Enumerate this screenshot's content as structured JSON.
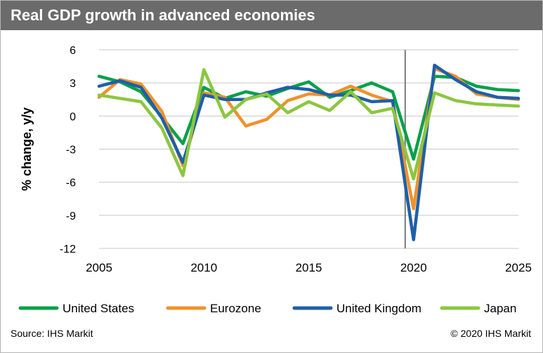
{
  "title": "Real GDP growth in advanced economies",
  "source": "Source: IHS Markit",
  "copyright": "© 2020 IHS Markit",
  "chart_data": {
    "type": "line",
    "title": "Real GDP growth in advanced economies",
    "xlabel": "",
    "ylabel": "% change, y/y",
    "xlim": [
      2005,
      2025
    ],
    "ylim": [
      -12,
      6
    ],
    "yticks": [
      -12,
      -9,
      -6,
      -3,
      0,
      3,
      6
    ],
    "xticks": [
      2005,
      2010,
      2015,
      2020,
      2025
    ],
    "grid": "horizontal",
    "legend_position": "bottom",
    "vline_x": 2019.6,
    "x": [
      2005,
      2006,
      2007,
      2008,
      2009,
      2010,
      2011,
      2012,
      2013,
      2014,
      2015,
      2016,
      2017,
      2018,
      2019,
      2020,
      2021,
      2022,
      2023,
      2024,
      2025
    ],
    "series": [
      {
        "name": "United States",
        "color": "#0aa04a",
        "values": [
          3.6,
          3.1,
          2.2,
          -0.1,
          -2.5,
          2.6,
          1.6,
          2.2,
          1.8,
          2.5,
          3.1,
          1.7,
          2.3,
          3.0,
          2.2,
          -3.9,
          3.6,
          3.5,
          2.7,
          2.4,
          2.3
        ]
      },
      {
        "name": "Eurozone",
        "color": "#f0922b",
        "values": [
          1.7,
          3.3,
          2.9,
          0.4,
          -4.5,
          2.1,
          1.7,
          -0.9,
          -0.3,
          1.4,
          2.0,
          1.9,
          2.7,
          1.9,
          1.3,
          -8.4,
          4.3,
          3.6,
          2.0,
          1.7,
          1.5
        ]
      },
      {
        "name": "United Kingdom",
        "color": "#1f5fa8",
        "values": [
          2.7,
          3.2,
          2.6,
          -0.2,
          -4.2,
          1.9,
          1.5,
          1.5,
          2.1,
          2.6,
          2.4,
          1.9,
          1.9,
          1.3,
          1.4,
          -11.2,
          4.6,
          3.3,
          2.2,
          1.7,
          1.6
        ]
      },
      {
        "name": "Japan",
        "color": "#8cc63f",
        "values": [
          1.9,
          1.6,
          1.3,
          -1.1,
          -5.4,
          4.2,
          -0.1,
          1.5,
          2.0,
          0.3,
          1.3,
          0.5,
          2.2,
          0.3,
          0.7,
          -5.7,
          2.1,
          1.4,
          1.1,
          1.0,
          0.9
        ]
      }
    ]
  }
}
